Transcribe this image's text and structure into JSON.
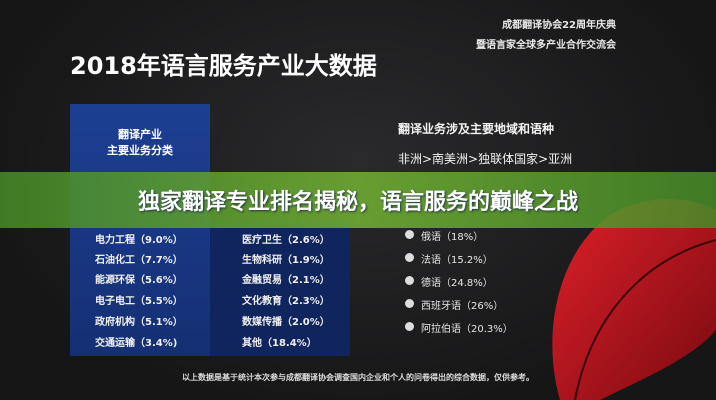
{
  "header": {
    "org_line1": "成都翻译协会22周年庆典",
    "org_line2": "暨语言家全球多产业合作交流会",
    "title": "2018年语言服务产业大数据"
  },
  "business": {
    "heading_line1": "翻译产业",
    "heading_line2": "主要业务分类",
    "left": [
      "电力工程（9.0%）",
      "石油化工（7.7%）",
      "能源环保（5.6%）",
      "电子电工（5.5%）",
      "政府机构（5.1%）",
      "交通运输（3.4%)"
    ],
    "right": [
      "医疗卫生（2.6%）",
      "生物科研（1.9%）",
      "金融贸易（2.1%）",
      "文化教育（2.3%）",
      "数媒传播（2.0%）",
      "其他（18.4%）"
    ]
  },
  "regions": {
    "heading": "翻译业务涉及主要地域和语种",
    "order": "非洲>南美洲>独联体国家>亚洲",
    "languages": [
      "俄语（18%）",
      "法语（15.2%）",
      "德语（24.8%）",
      "西班牙语（26%）",
      "阿拉伯语（20.3%）"
    ]
  },
  "banner": "独家翻译专业排名揭秘，语言服务的巅峰之战",
  "footer": "以上数据是基于统计本次参与成都翻译协会调查国内企业和个人的问卷得出的综合数据，仅供参考。"
}
